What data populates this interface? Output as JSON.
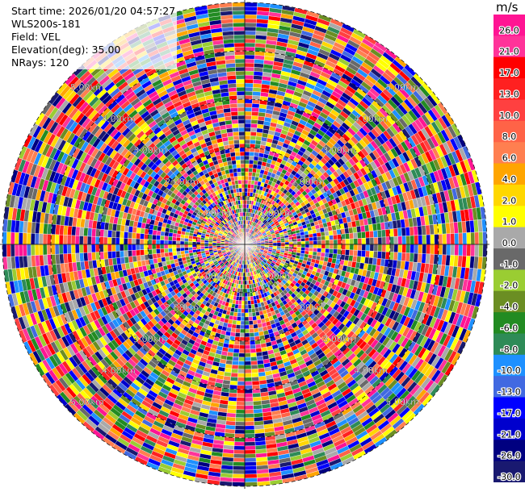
{
  "header": {
    "start_time": "Start time: 2026/01/20 04:57:27",
    "site": "WLS200s-181",
    "field": "Field: VEL",
    "elevation": "Elevation(deg): 35.00",
    "nrays": "NRays: 120"
  },
  "range_ring_labels": [
    "1.00km",
    "2.00km",
    "3.00km",
    "4.00km",
    "5.00km"
  ],
  "colorbar": {
    "unit": "m/s",
    "tick_labels": [
      "26.0",
      "21.0",
      "17.0",
      "13.0",
      "10.0",
      "8.0",
      "6.0",
      "4.0",
      "2.0",
      "1.0",
      "0.0",
      "-1.0",
      "-2.0",
      "-4.0",
      "-6.0",
      "-8.0",
      "-10.0",
      "-13.0",
      "-17.0",
      "-21.0",
      "-26.0",
      "-30.0"
    ],
    "colors": [
      "#ff1493",
      "#ff3399",
      "#ff0000",
      "#ff2020",
      "#ff4040",
      "#ff6347",
      "#ff7f50",
      "#ffa500",
      "#ffd700",
      "#ffff00",
      "#a9a9a9",
      "#696969",
      "#9acd32",
      "#6b8e23",
      "#228b22",
      "#2e8b57",
      "#1e90ff",
      "#4169e1",
      "#0000ff",
      "#0000cd",
      "#000080",
      "#191970"
    ]
  }
}
